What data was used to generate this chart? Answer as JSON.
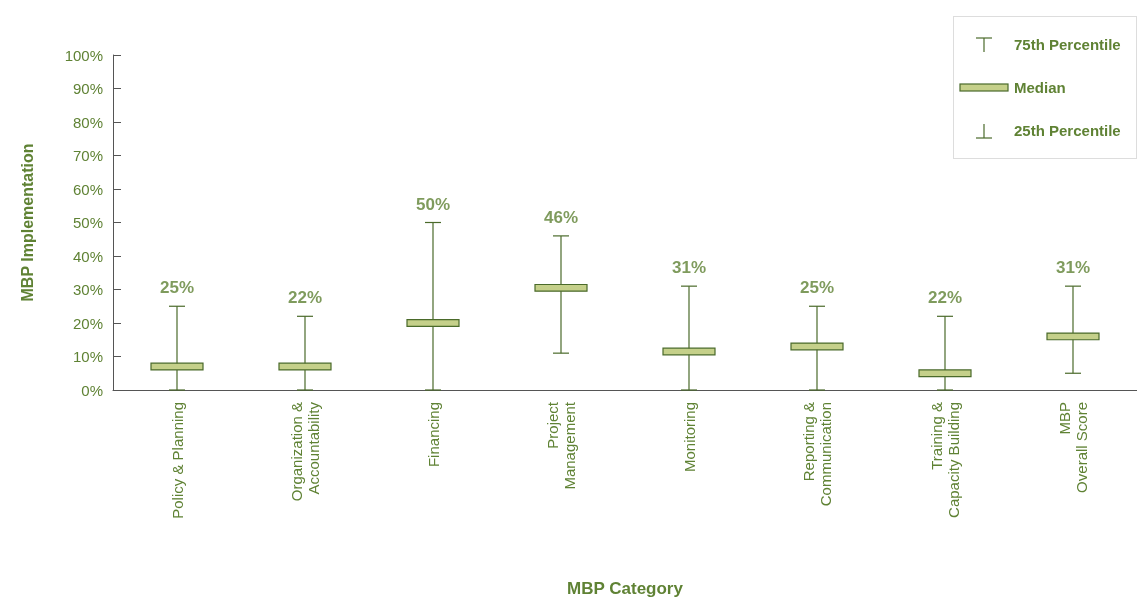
{
  "chart_data": {
    "type": "box",
    "xlabel": "MBP Category",
    "ylabel": "MBP Implementation",
    "categories": [
      "Policy & Planning",
      "Organization &\nAccountability",
      "Financing",
      "Project\nManagement",
      "Monitoring",
      "Reporting &\nCommunication",
      "Training &\nCapacity Building",
      "MBP\nOverall Score"
    ],
    "boxes": [
      {
        "low": 0,
        "q1": 6,
        "median": 7,
        "q3": 8,
        "high": 25
      },
      {
        "low": 0,
        "q1": 6,
        "median": 7,
        "q3": 8,
        "high": 22
      },
      {
        "low": 0,
        "q1": 19,
        "median": 20,
        "q3": 21,
        "high": 50
      },
      {
        "low": 11,
        "q1": 29.5,
        "median": 30.5,
        "q3": 31.5,
        "high": 46
      },
      {
        "low": 0,
        "q1": 10.5,
        "median": 11.5,
        "q3": 12.5,
        "high": 31
      },
      {
        "low": 0,
        "q1": 12,
        "median": 13,
        "q3": 14,
        "high": 25
      },
      {
        "low": 0,
        "q1": 4,
        "median": 5,
        "q3": 6,
        "high": 22
      },
      {
        "low": 5,
        "q1": 15,
        "median": 16,
        "q3": 17,
        "high": 31
      }
    ],
    "value_labels": [
      "25%",
      "22%",
      "50%",
      "46%",
      "31%",
      "25%",
      "22%",
      "31%"
    ],
    "color": "#c5d08a",
    "ylim": [
      0,
      100
    ],
    "yticks": [
      {
        "value": 0,
        "label": "0%"
      },
      {
        "value": 10,
        "label": "10%"
      },
      {
        "value": 20,
        "label": "20%"
      },
      {
        "value": 30,
        "label": "30%"
      },
      {
        "value": 40,
        "label": "40%"
      },
      {
        "value": 50,
        "label": "50%"
      },
      {
        "value": 60,
        "label": "60%"
      },
      {
        "value": 70,
        "label": "70%"
      },
      {
        "value": 80,
        "label": "80%"
      },
      {
        "value": 90,
        "label": "90%"
      },
      {
        "value": 100,
        "label": "100%"
      }
    ],
    "grid": false,
    "annotations": [
      "75th Percentile",
      "Median",
      "25th Percentile"
    ]
  }
}
